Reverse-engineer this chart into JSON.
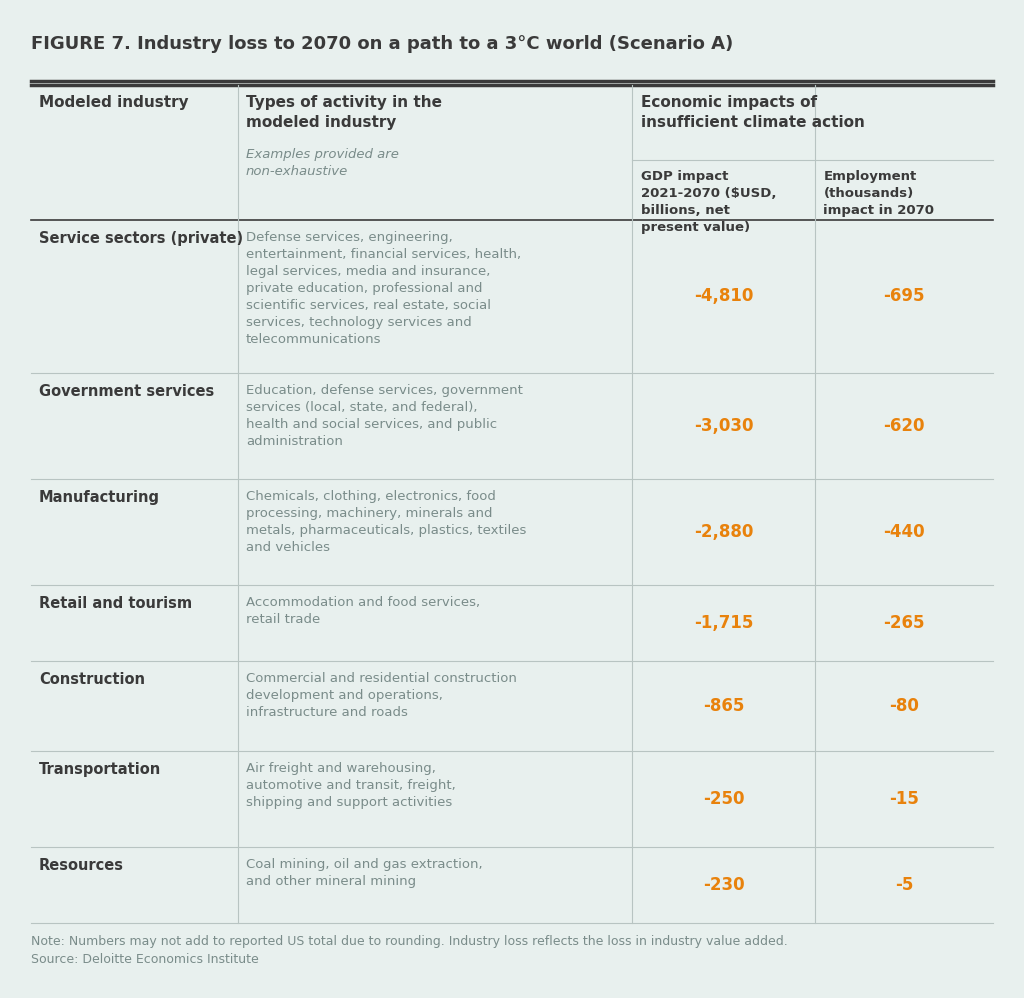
{
  "title": "FIGURE 7. Industry loss to 2070 on a path to a 3°C world (Scenario A)",
  "background_color": "#e8f0ee",
  "body_text_color": "#7a8c8a",
  "bold_text_color": "#3a3a3a",
  "orange_color": "#e8820c",
  "note_text": "Note: Numbers may not add to reported US total due to rounding. Industry loss reflects the loss in industry value added.\nSource: Deloitte Economics Institute",
  "rows": [
    {
      "industry": "Service sectors (private)",
      "description": "Defense services, engineering,\nentertainment, financial services, health,\nlegal services, media and insurance,\nprivate education, professional and\nscientific services, real estate, social\nservices, technology services and\ntelecommunications",
      "gdp": "-4,810",
      "employment": "-695"
    },
    {
      "industry": "Government services",
      "description": "Education, defense services, government\nservices (local, state, and federal),\nhealth and social services, and public\nadministration",
      "gdp": "-3,030",
      "employment": "-620"
    },
    {
      "industry": "Manufacturing",
      "description": "Chemicals, clothing, electronics, food\nprocessing, machinery, minerals and\nmetals, pharmaceuticals, plastics, textiles\nand vehicles",
      "gdp": "-2,880",
      "employment": "-440"
    },
    {
      "industry": "Retail and tourism",
      "description": "Accommodation and food services,\nretail trade",
      "gdp": "-1,715",
      "employment": "-265"
    },
    {
      "industry": "Construction",
      "description": "Commercial and residential construction\ndevelopment and operations,\ninfrastructure and roads",
      "gdp": "-865",
      "employment": "-80"
    },
    {
      "industry": "Transportation",
      "description": "Air freight and warehousing,\nautomotive and transit, freight,\nshipping and support activities",
      "gdp": "-250",
      "employment": "-15"
    },
    {
      "industry": "Resources",
      "description": "Coal mining, oil and gas extraction,\nand other mineral mining",
      "gdp": "-230",
      "employment": "-5"
    }
  ]
}
